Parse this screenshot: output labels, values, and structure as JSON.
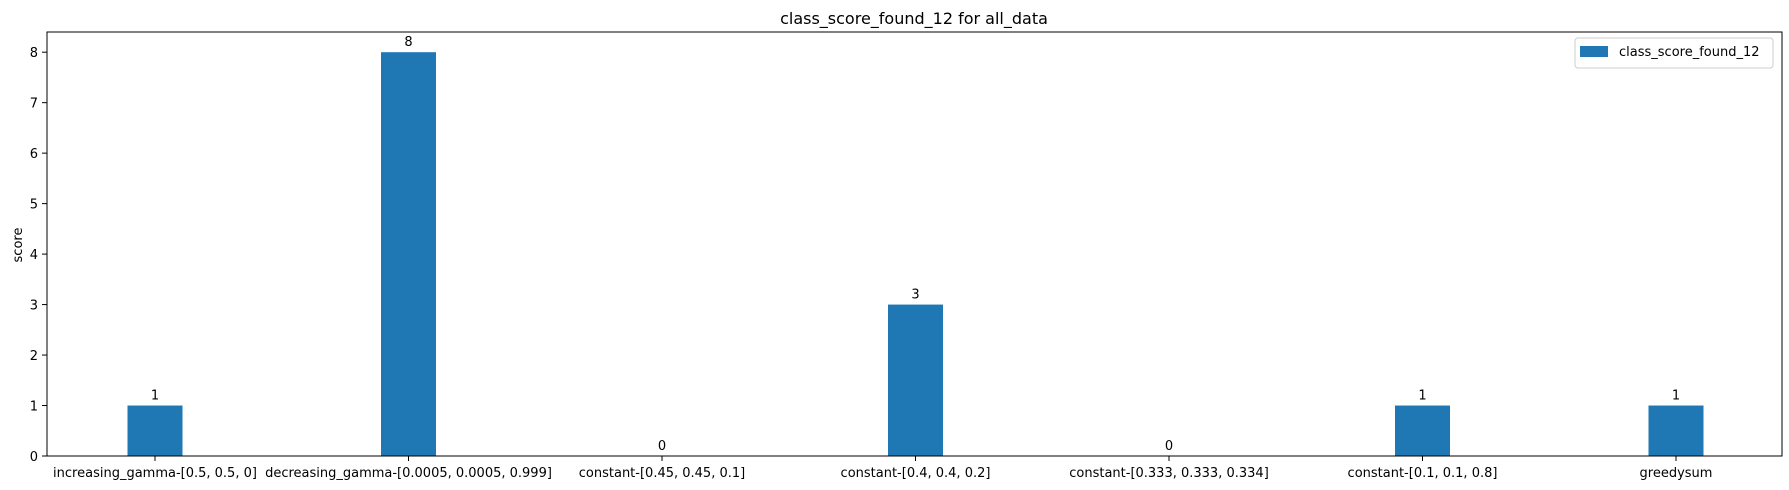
{
  "chart_data": {
    "type": "bar",
    "title": "class_score_found_12 for all_data",
    "xlabel": "",
    "ylabel": "score",
    "categories": [
      "increasing_gamma-[0.5, 0.5, 0]",
      "decreasing_gamma-[0.0005, 0.0005, 0.999]",
      "constant-[0.45, 0.45, 0.1]",
      "constant-[0.4, 0.4, 0.2]",
      "constant-[0.333, 0.333, 0.334]",
      "constant-[0.1, 0.1, 0.8]",
      "greedysum"
    ],
    "series": [
      {
        "name": "class_score_found_12",
        "values": [
          1,
          8,
          0,
          3,
          0,
          1,
          1
        ],
        "color": "#1f77b4"
      }
    ],
    "ylim": [
      0,
      8.4
    ],
    "yticks": [
      0,
      1,
      2,
      3,
      4,
      5,
      6,
      7,
      8
    ],
    "grid": false,
    "legend_position": "top-right"
  }
}
